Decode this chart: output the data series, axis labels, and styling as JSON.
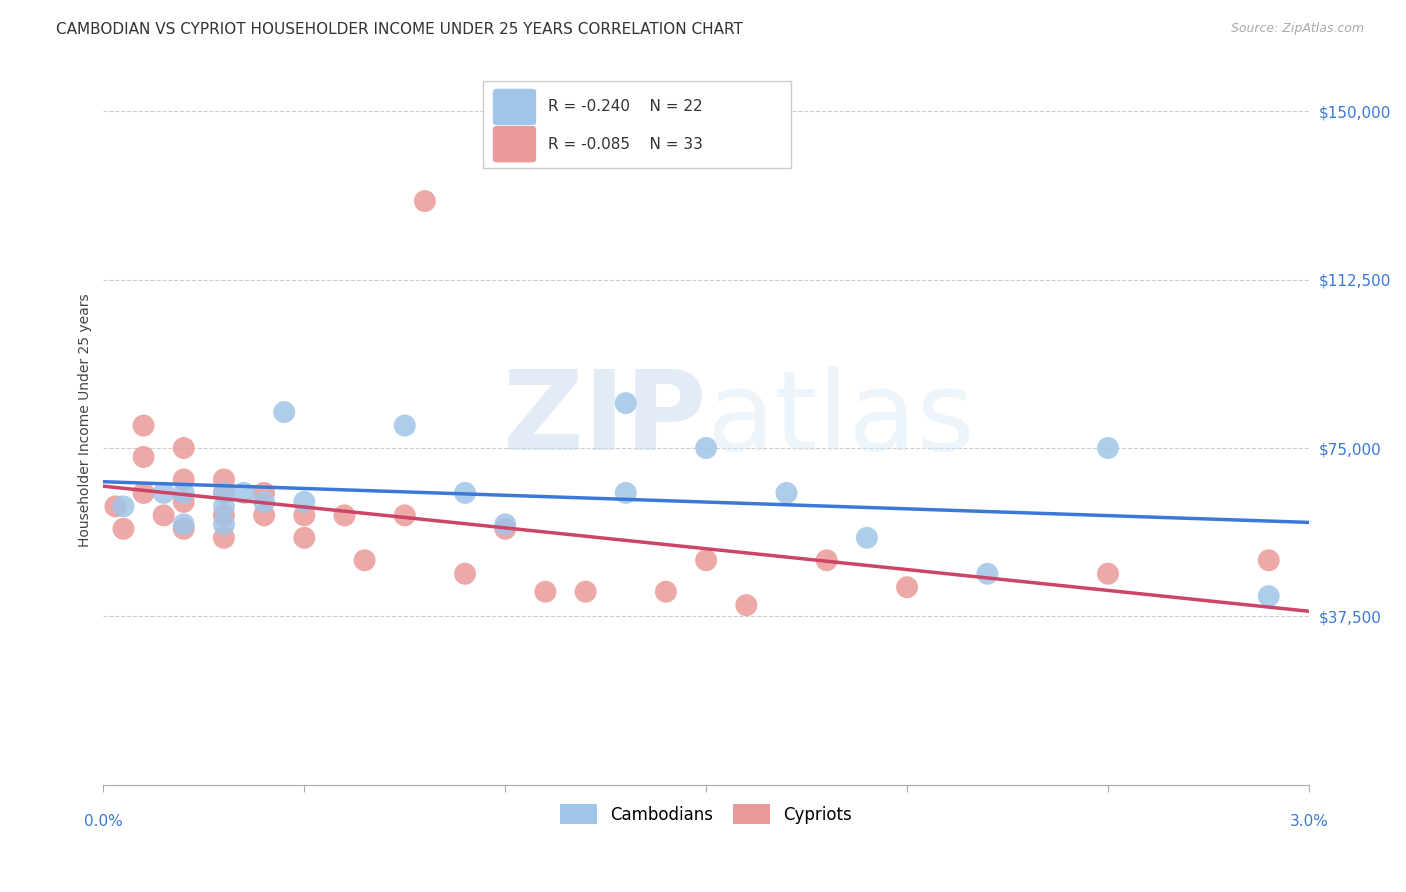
{
  "title": "CAMBODIAN VS CYPRIOT HOUSEHOLDER INCOME UNDER 25 YEARS CORRELATION CHART",
  "source": "Source: ZipAtlas.com",
  "ylabel": "Householder Income Under 25 years",
  "xlim": [
    0.0,
    0.03
  ],
  "ylim": [
    0,
    162500
  ],
  "yticks": [
    37500,
    75000,
    112500,
    150000
  ],
  "ytick_labels": [
    "$37,500",
    "$75,000",
    "$112,500",
    "$150,000"
  ],
  "legend_r_cambodian": "R = -0.240",
  "legend_n_cambodian": "N = 22",
  "legend_r_cypriot": "R = -0.085",
  "legend_n_cypriot": "N = 33",
  "cambodian_color": "#9fc5e8",
  "cypriot_color": "#ea9999",
  "trendline_cambodian_color": "#3c78d8",
  "trendline_cypriot_color": "#cc4466",
  "ytick_color": "#3c78d8",
  "background_color": "#ffffff",
  "cambodian_x": [
    0.0005,
    0.0015,
    0.002,
    0.002,
    0.003,
    0.003,
    0.003,
    0.0035,
    0.004,
    0.0045,
    0.005,
    0.0075,
    0.009,
    0.01,
    0.013,
    0.013,
    0.015,
    0.017,
    0.019,
    0.022,
    0.025,
    0.029
  ],
  "cambodian_y": [
    62000,
    65000,
    65000,
    58000,
    65000,
    62000,
    58000,
    65000,
    63000,
    83000,
    63000,
    80000,
    65000,
    58000,
    65000,
    85000,
    75000,
    65000,
    55000,
    47000,
    75000,
    42000
  ],
  "cypriot_x": [
    0.0003,
    0.0005,
    0.001,
    0.001,
    0.001,
    0.0015,
    0.002,
    0.002,
    0.002,
    0.002,
    0.003,
    0.003,
    0.003,
    0.003,
    0.004,
    0.004,
    0.005,
    0.005,
    0.006,
    0.0065,
    0.0075,
    0.008,
    0.009,
    0.01,
    0.011,
    0.012,
    0.014,
    0.015,
    0.016,
    0.018,
    0.02,
    0.025,
    0.029
  ],
  "cypriot_y": [
    62000,
    57000,
    80000,
    73000,
    65000,
    60000,
    75000,
    68000,
    63000,
    57000,
    68000,
    65000,
    60000,
    55000,
    65000,
    60000,
    60000,
    55000,
    60000,
    50000,
    60000,
    130000,
    47000,
    57000,
    43000,
    43000,
    43000,
    50000,
    40000,
    50000,
    44000,
    47000,
    50000
  ],
  "title_fontsize": 11,
  "source_fontsize": 9,
  "axis_label_fontsize": 10,
  "tick_fontsize": 11,
  "legend_fontsize": 11,
  "scatter_size": 250
}
